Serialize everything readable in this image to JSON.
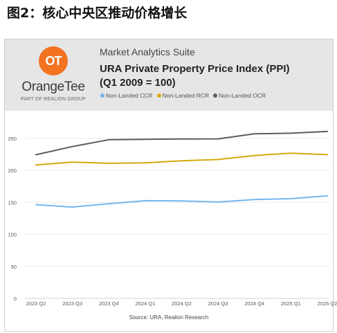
{
  "figure_title": "图2：核心中央区推动价格增长",
  "header": {
    "logo_mark": "OT",
    "logo_word": "OrangeTee",
    "logo_sub": "PART OF REALION GROUP",
    "suite": "Market Analytics Suite",
    "title_line1": "URA Private Property Price Index (PPI)",
    "title_line2": "(Q1 2009 = 100)"
  },
  "colors": {
    "ccr": "#74b6ee",
    "rcr": "#d4a90f",
    "ocr": "#5c5c5c",
    "logo": "#f37321"
  },
  "source": "Source: URA, Realion Research",
  "chart_data": {
    "type": "line",
    "title": "URA Private Property Price Index (PPI) (Q1 2009 = 100)",
    "xlabel": "",
    "ylabel": "",
    "categories": [
      "2023 Q2",
      "2023 Q3",
      "2023 Q4",
      "2024 Q1",
      "2024 Q2",
      "2024 Q3",
      "2024 Q4",
      "2025 Q1",
      "2025 Q2"
    ],
    "yticks": [
      0,
      50,
      100,
      150,
      200,
      250
    ],
    "ylim": [
      0,
      270
    ],
    "grid": true,
    "legend_position": "top",
    "series": [
      {
        "name": "Non-Landed CCR",
        "color": "#74b6ee",
        "values": [
          146.5,
          142.7,
          148,
          152.7,
          152.4,
          150.8,
          154.5,
          155.8,
          160.3
        ]
      },
      {
        "name": "Non-Landed RCR",
        "color": "#d4a90f",
        "values": [
          208.6,
          213.1,
          211.2,
          211.8,
          215.2,
          217.1,
          223.4,
          226.9,
          224.7
        ]
      },
      {
        "name": "Non-Landed OCR",
        "color": "#5c5c5c",
        "values": [
          224.6,
          237.3,
          248.1,
          248.7,
          249.2,
          249.4,
          257.3,
          258.2,
          260.9
        ]
      }
    ]
  }
}
